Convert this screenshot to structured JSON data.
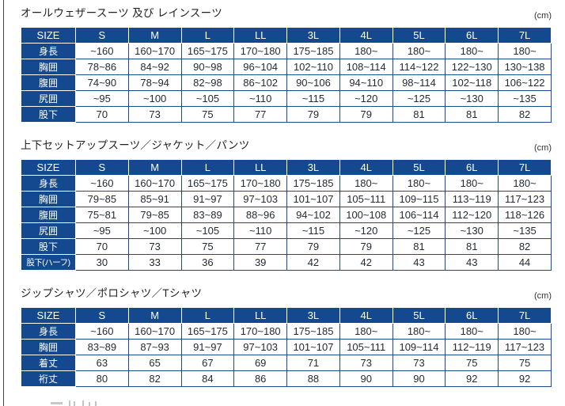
{
  "document": {
    "unit_label": "(cm)"
  },
  "colors": {
    "header_bg": "#14498f",
    "grid_border": "#1a4d8f",
    "cell_text": "#262b33",
    "title_text": "#222222",
    "page_border": "#474747"
  },
  "tables": [
    {
      "title": "オールウェザースーツ 及び レインスーツ",
      "unit": "(cm)",
      "header": [
        "SIZE",
        "S",
        "M",
        "L",
        "LL",
        "3L",
        "4L",
        "5L",
        "6L",
        "7L"
      ],
      "rows": [
        {
          "label": "身長",
          "values": [
            "~160",
            "160~170",
            "165~175",
            "170~180",
            "175~185",
            "180~",
            "180~",
            "180~",
            "180~"
          ]
        },
        {
          "label": "胸囲",
          "values": [
            "78~86",
            "84~92",
            "90~98",
            "96~104",
            "102~110",
            "108~114",
            "114~122",
            "122~130",
            "130~138"
          ]
        },
        {
          "label": "腹囲",
          "values": [
            "74~90",
            "78~94",
            "82~98",
            "86~102",
            "90~106",
            "94~110",
            "98~114",
            "102~118",
            "106~122"
          ]
        },
        {
          "label": "尻囲",
          "values": [
            "~95",
            "~100",
            "~105",
            "~110",
            "~115",
            "~120",
            "~125",
            "~130",
            "~135"
          ]
        },
        {
          "label": "股下",
          "values": [
            "70",
            "73",
            "75",
            "77",
            "79",
            "79",
            "81",
            "81",
            "82"
          ]
        }
      ]
    },
    {
      "title": "上下セットアップスーツ／ジャケット／パンツ",
      "unit": "(cm)",
      "header": [
        "SIZE",
        "S",
        "M",
        "L",
        "LL",
        "3L",
        "4L",
        "5L",
        "6L",
        "7L"
      ],
      "rows": [
        {
          "label": "身長",
          "values": [
            "~160",
            "160~170",
            "165~175",
            "170~180",
            "175~185",
            "180~",
            "180~",
            "180~",
            "180~"
          ]
        },
        {
          "label": "胸囲",
          "values": [
            "79~85",
            "85~91",
            "91~97",
            "97~103",
            "101~107",
            "105~111",
            "109~115",
            "113~119",
            "117~123"
          ]
        },
        {
          "label": "腹囲",
          "values": [
            "75~81",
            "79~85",
            "83~89",
            "88~96",
            "94~102",
            "100~108",
            "106~114",
            "112~120",
            "118~126"
          ]
        },
        {
          "label": "尻囲",
          "values": [
            "~95",
            "~100",
            "~105",
            "~110",
            "~115",
            "~120",
            "~125",
            "~130",
            "~135"
          ]
        },
        {
          "label": "股下",
          "values": [
            "70",
            "73",
            "75",
            "77",
            "79",
            "79",
            "81",
            "81",
            "82"
          ]
        },
        {
          "label": "股下(ハーフ)",
          "values": [
            "30",
            "33",
            "36",
            "39",
            "42",
            "42",
            "43",
            "43",
            "44"
          ]
        }
      ]
    },
    {
      "title": "ジップシャツ／ポロシャツ／Tシャツ",
      "unit": "(cm)",
      "header": [
        "SIZE",
        "S",
        "M",
        "L",
        "LL",
        "3L",
        "4L",
        "5L",
        "6L",
        "7L"
      ],
      "rows": [
        {
          "label": "身長",
          "values": [
            "~160",
            "160~170",
            "165~175",
            "170~180",
            "175~185",
            "180~",
            "180~",
            "180~",
            "180~"
          ]
        },
        {
          "label": "胸囲",
          "values": [
            "83~89",
            "87~93",
            "91~97",
            "97~103",
            "101~107",
            "105~111",
            "109~114",
            "112~119",
            "117~123"
          ]
        },
        {
          "label": "着丈",
          "values": [
            "63",
            "65",
            "67",
            "69",
            "71",
            "73",
            "73",
            "75",
            "75"
          ]
        },
        {
          "label": "裄丈",
          "values": [
            "80",
            "82",
            "84",
            "86",
            "88",
            "90",
            "90",
            "92",
            "92"
          ]
        }
      ]
    }
  ]
}
